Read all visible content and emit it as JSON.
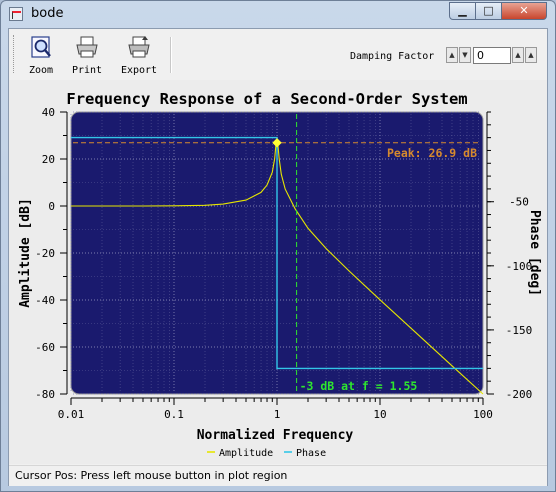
{
  "window": {
    "title": "bode",
    "minimize": "▁",
    "maximize": "□",
    "close": "✕"
  },
  "toolbar": {
    "items": [
      {
        "label": "Zoom",
        "icon": "zoom-icon"
      },
      {
        "label": "Print",
        "icon": "print-icon"
      },
      {
        "label": "Export",
        "icon": "export-icon"
      }
    ],
    "damping_label": "Damping Factor",
    "damping_value": "0"
  },
  "chart_data": {
    "type": "line",
    "title": "Frequency Response of a Second-Order System",
    "xlabel": "Normalized Frequency",
    "ylabel_left": "Amplitude [dB]",
    "ylabel_right": "Phase [deg]",
    "x_scale": "log",
    "xlim": [
      0.01,
      100
    ],
    "ylim_left": [
      -80,
      40
    ],
    "ylim_right": [
      -200,
      20
    ],
    "x_ticks": [
      "0.01",
      "0.1",
      "1",
      "10",
      "100"
    ],
    "y_ticks_left": [
      "40",
      "20",
      "0",
      "-20",
      "-40",
      "-60",
      "-80"
    ],
    "y_ticks_right": [
      "-50",
      "-100",
      "-150",
      "-200"
    ],
    "grid": true,
    "background": "#1a1a6e",
    "legend_position": "bottom",
    "series": [
      {
        "name": "Amplitude",
        "color": "#e6e600",
        "x": [
          0.01,
          0.05,
          0.1,
          0.2,
          0.3,
          0.5,
          0.7,
          0.8,
          0.9,
          0.95,
          0.98,
          1.0,
          1.02,
          1.05,
          1.1,
          1.2,
          1.5,
          2,
          3,
          5,
          10,
          20,
          50,
          100
        ],
        "values": [
          0,
          0,
          0.1,
          0.3,
          0.8,
          2.5,
          5.8,
          8.9,
          14.4,
          20.2,
          26.9,
          26.9,
          26.0,
          20.0,
          13.5,
          7.2,
          -1.2,
          -9.5,
          -18.1,
          -27.6,
          -39.9,
          -52.0,
          -68.0,
          -80.0
        ]
      },
      {
        "name": "Phase",
        "color": "#33c6e8",
        "x": [
          0.01,
          1.0,
          1.0,
          100
        ],
        "values": [
          0,
          0,
          -180,
          -180
        ]
      }
    ],
    "annotations": [
      {
        "text": "Peak: 26.9 dB",
        "x": 1.0,
        "y": 26.9,
        "color": "#d68a2e"
      },
      {
        "text": "-3 dB at f = 1.55",
        "x": 1.55,
        "color": "#2ee62e"
      }
    ],
    "legend": [
      "Amplitude",
      "Phase"
    ]
  },
  "status": {
    "text": "Cursor Pos: Press left mouse button in plot region"
  }
}
